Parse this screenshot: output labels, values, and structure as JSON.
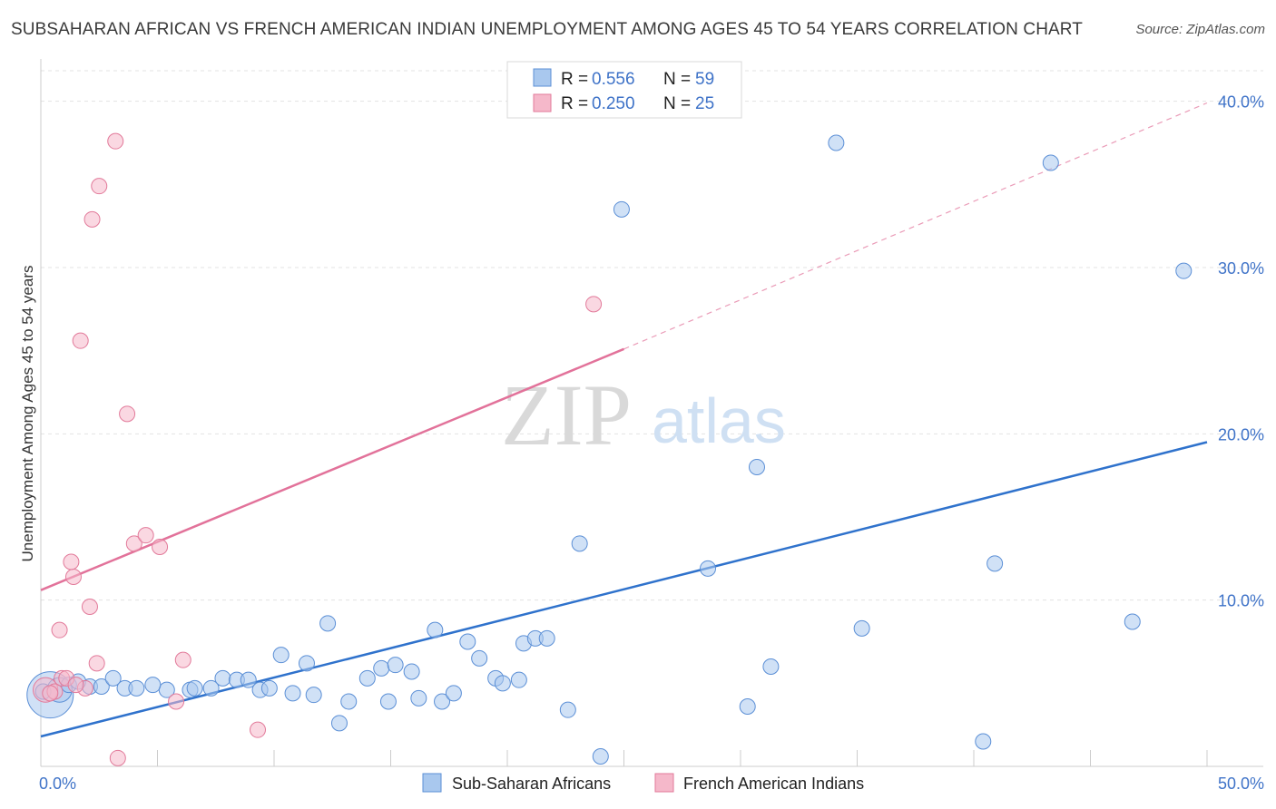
{
  "title": "SUBSAHARAN AFRICAN VS FRENCH AMERICAN INDIAN UNEMPLOYMENT AMONG AGES 45 TO 54 YEARS CORRELATION CHART",
  "source": "Source: ZipAtlas.com",
  "watermark": {
    "zip": "ZIP",
    "atlas": "atlas"
  },
  "colors": {
    "blue_fill": "#a9c8ee",
    "blue_stroke": "#5b8fd6",
    "blue_line": "#2f72cc",
    "pink_fill": "#f5b8ca",
    "pink_stroke": "#e27a9a",
    "pink_line": "#e2729a",
    "grid": "#e3e3e3",
    "axis_label": "#3f73c8"
  },
  "legend": {
    "r_label": "R =",
    "n_label": "N =",
    "series": [
      {
        "r": "0.556",
        "n": "59"
      },
      {
        "r": "0.250",
        "n": "25"
      }
    ]
  },
  "chart_data": {
    "type": "scatter",
    "title": "SUBSAHARAN AFRICAN VS FRENCH AMERICAN INDIAN UNEMPLOYMENT AMONG AGES 45 TO 54 YEARS CORRELATION CHART",
    "xlabel": "",
    "ylabel": "Unemployment Among Ages 45 to 54 years",
    "xlim": [
      0,
      50
    ],
    "ylim": [
      0,
      42
    ],
    "x_tick_labels": [
      {
        "value": 0,
        "label": "0.0%"
      },
      {
        "value": 50,
        "label": "50.0%"
      }
    ],
    "y_tick_labels": [
      {
        "value": 10,
        "label": "10.0%"
      },
      {
        "value": 20,
        "label": "20.0%"
      },
      {
        "value": 30,
        "label": "30.0%"
      },
      {
        "value": 40,
        "label": "40.0%"
      }
    ],
    "grid": true,
    "series": [
      {
        "name": "Sub-Saharan Africans",
        "color": "#a9c8ee",
        "trend": {
          "x0": 0,
          "y0": 1.8,
          "x1": 50,
          "y1": 19.5,
          "dashed_to": null
        },
        "points": [
          [
            0.4,
            4.3,
            3
          ],
          [
            0.8,
            4.6,
            1.6
          ],
          [
            1.2,
            4.9,
            1
          ],
          [
            1.6,
            5.1,
            1
          ],
          [
            2.1,
            4.8,
            1
          ],
          [
            2.6,
            4.8,
            1
          ],
          [
            3.1,
            5.3,
            1
          ],
          [
            3.6,
            4.7,
            1
          ],
          [
            4.1,
            4.7,
            1
          ],
          [
            5.4,
            4.6,
            1
          ],
          [
            4.8,
            4.9,
            1
          ],
          [
            6.4,
            4.6,
            1
          ],
          [
            6.6,
            4.7,
            1
          ],
          [
            7.3,
            4.7,
            1
          ],
          [
            7.8,
            5.3,
            1
          ],
          [
            8.4,
            5.2,
            1
          ],
          [
            8.9,
            5.2,
            1
          ],
          [
            9.4,
            4.6,
            1
          ],
          [
            9.8,
            4.7,
            1
          ],
          [
            10.3,
            6.7,
            1
          ],
          [
            10.8,
            4.4,
            1
          ],
          [
            11.4,
            6.2,
            1
          ],
          [
            11.7,
            4.3,
            1
          ],
          [
            12.3,
            8.6,
            1
          ],
          [
            12.8,
            2.6,
            1
          ],
          [
            13.2,
            3.9,
            1
          ],
          [
            14.0,
            5.3,
            1
          ],
          [
            14.6,
            5.9,
            1
          ],
          [
            14.9,
            3.9,
            1
          ],
          [
            15.2,
            6.1,
            1
          ],
          [
            15.9,
            5.7,
            1
          ],
          [
            16.2,
            4.1,
            1
          ],
          [
            16.9,
            8.2,
            1
          ],
          [
            17.2,
            3.9,
            1
          ],
          [
            17.7,
            4.4,
            1
          ],
          [
            18.3,
            7.5,
            1
          ],
          [
            18.8,
            6.5,
            1
          ],
          [
            19.5,
            5.3,
            1
          ],
          [
            19.8,
            5.0,
            1
          ],
          [
            20.5,
            5.2,
            1
          ],
          [
            20.7,
            7.4,
            1
          ],
          [
            21.2,
            7.7,
            1
          ],
          [
            21.7,
            7.7,
            1
          ],
          [
            22.6,
            3.4,
            1
          ],
          [
            23.1,
            13.4,
            1
          ],
          [
            24.0,
            0.6,
            1
          ],
          [
            24.9,
            33.5,
            1
          ],
          [
            28.6,
            11.9,
            1
          ],
          [
            30.3,
            3.6,
            1
          ],
          [
            30.7,
            18.0,
            1
          ],
          [
            31.3,
            6.0,
            1
          ],
          [
            34.1,
            37.5,
            1
          ],
          [
            35.2,
            8.3,
            1
          ],
          [
            40.4,
            1.5,
            1
          ],
          [
            40.9,
            12.2,
            1
          ],
          [
            43.3,
            36.3,
            1
          ],
          [
            46.8,
            8.7,
            1
          ],
          [
            49.0,
            29.8,
            1
          ],
          [
            0.1,
            4.5,
            1
          ]
        ]
      },
      {
        "name": "French American Indians",
        "color": "#f5b8ca",
        "trend": {
          "x0": 0,
          "y0": 10.6,
          "x1": 25.0,
          "y1": 25.1,
          "dashed_to": [
            50,
            39.9
          ]
        },
        "points": [
          [
            0.2,
            4.6,
            1.6
          ],
          [
            0.6,
            4.5,
            1
          ],
          [
            0.9,
            5.3,
            1
          ],
          [
            1.1,
            5.3,
            1
          ],
          [
            1.4,
            11.4,
            1
          ],
          [
            1.3,
            12.3,
            1
          ],
          [
            1.7,
            25.6,
            1
          ],
          [
            1.9,
            4.7,
            1
          ],
          [
            2.1,
            9.6,
            1
          ],
          [
            2.2,
            32.9,
            1
          ],
          [
            2.5,
            34.9,
            1
          ],
          [
            2.4,
            6.2,
            1
          ],
          [
            3.2,
            37.6,
            1
          ],
          [
            3.3,
            0.5,
            1
          ],
          [
            3.7,
            21.2,
            1
          ],
          [
            4.0,
            13.4,
            1
          ],
          [
            4.5,
            13.9,
            1
          ],
          [
            5.1,
            13.2,
            1
          ],
          [
            5.8,
            3.9,
            1
          ],
          [
            6.1,
            6.4,
            1
          ],
          [
            9.3,
            2.2,
            1
          ],
          [
            23.7,
            27.8,
            1
          ],
          [
            0.8,
            8.2,
            1
          ],
          [
            0.4,
            4.4,
            1
          ],
          [
            1.5,
            4.9,
            1
          ]
        ]
      }
    ]
  },
  "bottom_legend": [
    {
      "label": "Sub-Saharan Africans"
    },
    {
      "label": "French American Indians"
    }
  ]
}
